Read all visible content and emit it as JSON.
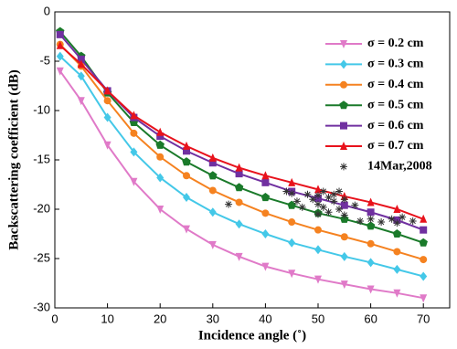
{
  "chart_data": {
    "type": "line",
    "x_label": "Incidence angle (˚)",
    "y_label": "Backscattering coefficient (dB)",
    "x": [
      1,
      5,
      10,
      15,
      20,
      25,
      30,
      35,
      40,
      45,
      50,
      55,
      60,
      65,
      70
    ],
    "xlim": [
      0,
      75
    ],
    "ylim": [
      -30,
      0
    ],
    "xticks": [
      0,
      10,
      20,
      30,
      40,
      50,
      60,
      70
    ],
    "yticks": [
      -30,
      -25,
      -20,
      -15,
      -10,
      -5,
      0
    ],
    "legend": "upper-right",
    "series": [
      {
        "name": "σ = 0.2 cm",
        "color": "#e07ac8",
        "marker": "triangle-down",
        "values": [
          -6,
          -9,
          -13.5,
          -17.2,
          -20,
          -22,
          -23.6,
          -24.8,
          -25.8,
          -26.5,
          -27.1,
          -27.6,
          -28.1,
          -28.5,
          -29
        ]
      },
      {
        "name": "σ = 0.3 cm",
        "color": "#44c8e8",
        "marker": "diamond",
        "values": [
          -4.5,
          -6.5,
          -10.7,
          -14.2,
          -16.8,
          -18.8,
          -20.3,
          -21.5,
          -22.5,
          -23.4,
          -24.1,
          -24.8,
          -25.4,
          -26.1,
          -26.8
        ]
      },
      {
        "name": "σ = 0.4 cm",
        "color": "#f58220",
        "marker": "circle",
        "values": [
          -3.3,
          -5.5,
          -9,
          -12.3,
          -14.7,
          -16.6,
          -18.1,
          -19.3,
          -20.4,
          -21.3,
          -22.1,
          -22.8,
          -23.5,
          -24.3,
          -25.1
        ]
      },
      {
        "name": "σ = 0.5 cm",
        "color": "#1a7a2a",
        "marker": "pentagon",
        "values": [
          -2,
          -4.5,
          -8.2,
          -11.2,
          -13.5,
          -15.2,
          -16.6,
          -17.8,
          -18.8,
          -19.6,
          -20.4,
          -21,
          -21.7,
          -22.5,
          -23.4
        ]
      },
      {
        "name": "σ = 0.6 cm",
        "color": "#7030a0",
        "marker": "square",
        "values": [
          -2.3,
          -4.8,
          -8,
          -10.7,
          -12.6,
          -14.1,
          -15.3,
          -16.4,
          -17.3,
          -18.2,
          -18.9,
          -19.6,
          -20.3,
          -21.1,
          -22.1
        ]
      },
      {
        "name": "σ = 0.7 cm",
        "color": "#e8121c",
        "marker": "triangle-up",
        "values": [
          -3.4,
          -5.3,
          -8,
          -10.5,
          -12.2,
          -13.6,
          -14.8,
          -15.8,
          -16.6,
          -17.3,
          -18,
          -18.7,
          -19.3,
          -20,
          -21
        ]
      },
      {
        "name": "14Mar,2008",
        "type": "scatter",
        "color": "#333333",
        "marker": "asterisk",
        "x": [
          33,
          44,
          45,
          46,
          47,
          48,
          49,
          50,
          50,
          50,
          51,
          51,
          52,
          52,
          53,
          53,
          54,
          54,
          55,
          55,
          57,
          58,
          60,
          62,
          64,
          65,
          66,
          68
        ],
        "values": [
          -19.5,
          -18.2,
          -18.4,
          -19.2,
          -19.8,
          -18.5,
          -19,
          -18.6,
          -19.5,
          -20.5,
          -18.2,
          -19.8,
          -18.8,
          -20.3,
          -18.5,
          -19.2,
          -18.2,
          -20,
          -19,
          -20.6,
          -19.6,
          -21.2,
          -21,
          -21.3,
          -21,
          -21.4,
          -20.8,
          -21.2
        ]
      }
    ]
  }
}
